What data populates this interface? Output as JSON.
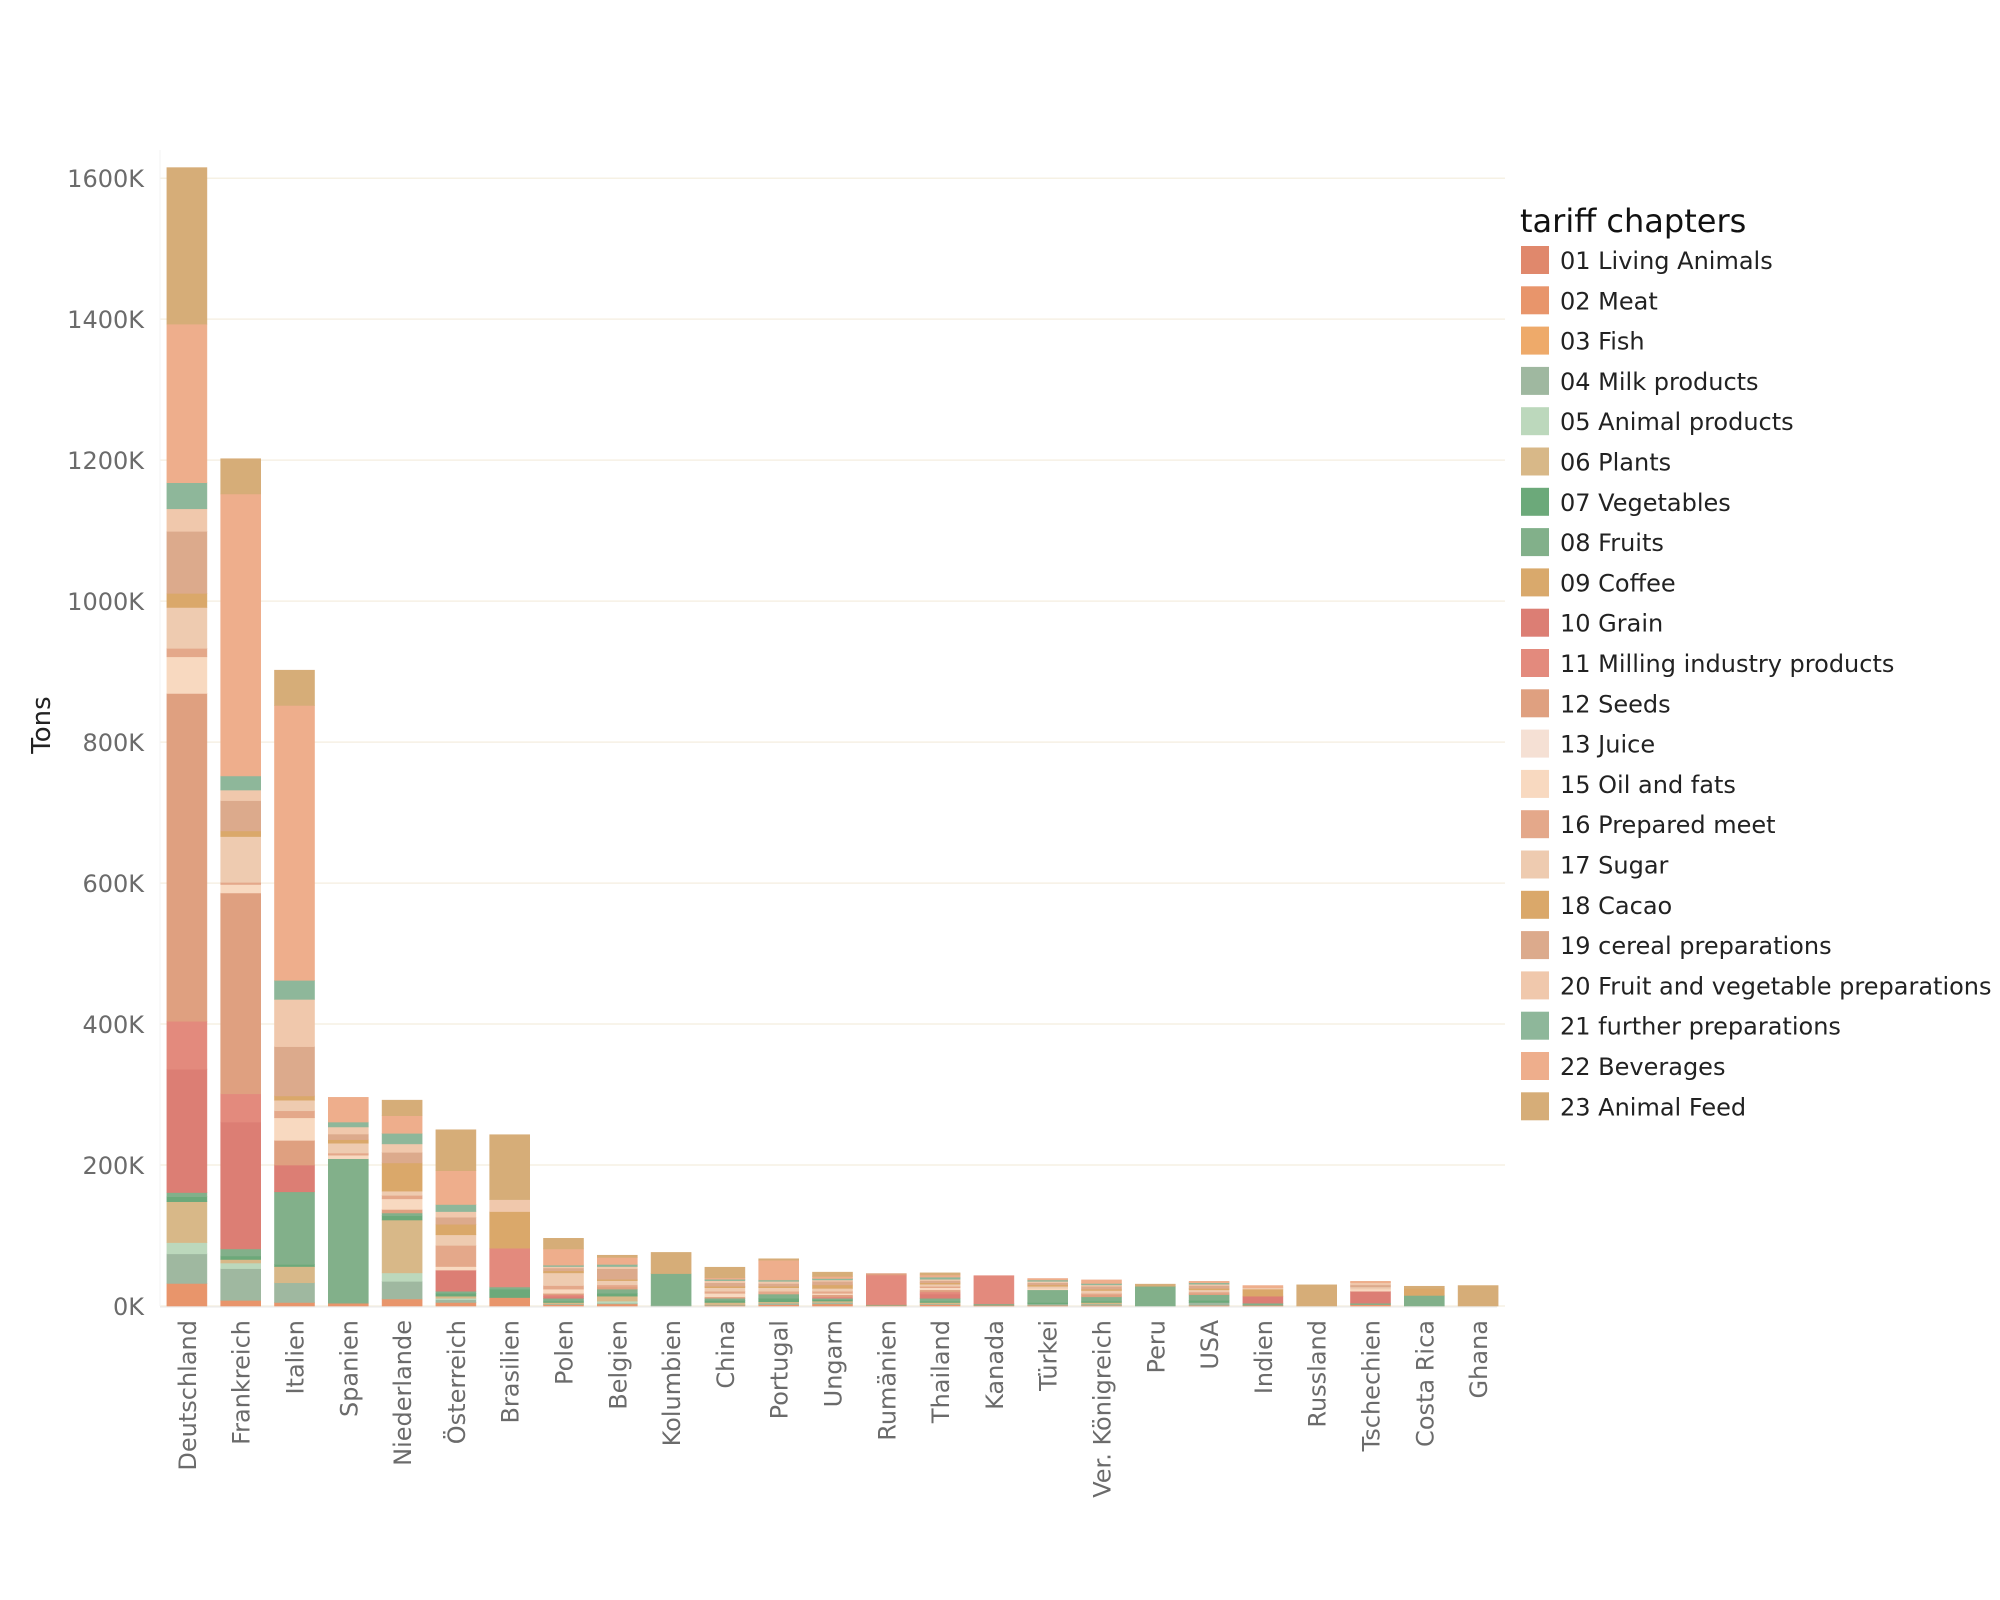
{
  "chart_data": {
    "type": "bar",
    "stacked": true,
    "title": "",
    "xlabel": "",
    "ylabel": "Tons",
    "ylim": [
      0,
      1640
    ],
    "y_unit": "K",
    "y_ticks": [
      {
        "value": 0,
        "label": "0K"
      },
      {
        "value": 200,
        "label": "200K"
      },
      {
        "value": 400,
        "label": "400K"
      },
      {
        "value": 600,
        "label": "600K"
      },
      {
        "value": 800,
        "label": "800K"
      },
      {
        "value": 1000,
        "label": "1000K"
      },
      {
        "value": 1200,
        "label": "1200K"
      },
      {
        "value": 1400,
        "label": "1400K"
      },
      {
        "value": 1600,
        "label": "1600K"
      }
    ],
    "grid": true,
    "x_tick_rotation": "vertical",
    "legend": {
      "title": "tariff chapters",
      "placement": "right"
    },
    "categories": [
      "Deutschland",
      "Frankreich",
      "Italien",
      "Spanien",
      "Niederlande",
      "Österreich",
      "Brasilien",
      "Polen",
      "Belgien",
      "Kolumbien",
      "China",
      "Portugal",
      "Ungarn",
      "Rumänien",
      "Thailand",
      "Kanada",
      "Türkei",
      "Ver. Königreich",
      "Peru",
      "USA",
      "Indien",
      "Russland",
      "Tschechien",
      "Costa Rica",
      "Ghana"
    ],
    "series": [
      {
        "name": "01 Living Animals",
        "color": "#e0886c",
        "values": [
          0,
          0,
          0,
          0,
          0,
          0,
          0,
          0,
          0,
          0,
          0,
          0,
          0,
          0,
          0,
          0,
          0,
          0,
          0,
          0,
          0,
          0,
          0,
          0,
          0
        ]
      },
      {
        "name": "02 Meat",
        "color": "#e8956b",
        "values": [
          32,
          8,
          5,
          4,
          10,
          5,
          12,
          2,
          3,
          0,
          1,
          2,
          3,
          1,
          2,
          1,
          1,
          1,
          0,
          1,
          1,
          0,
          2,
          0,
          0
        ]
      },
      {
        "name": "03 Fish",
        "color": "#eeaa6a",
        "values": [
          0,
          0,
          0,
          0,
          0,
          0,
          0,
          0,
          0,
          0,
          0,
          0,
          0,
          0,
          0,
          0,
          0,
          0,
          0,
          0,
          0,
          0,
          0,
          0,
          0
        ]
      },
      {
        "name": "04 Milk products",
        "color": "#9fb8a0",
        "values": [
          42,
          45,
          28,
          0,
          25,
          4,
          0,
          1,
          1,
          1,
          1,
          2,
          2,
          0,
          1,
          0,
          2,
          2,
          0,
          4,
          0,
          0,
          0,
          0,
          0
        ]
      },
      {
        "name": "05 Animal products",
        "color": "#bcd8bc",
        "values": [
          16,
          8,
          0,
          0,
          12,
          2,
          0,
          0,
          3,
          0,
          0,
          0,
          0,
          0,
          0,
          0,
          0,
          0,
          0,
          0,
          0,
          0,
          0,
          0,
          0
        ]
      },
      {
        "name": "06 Plants",
        "color": "#d8b888",
        "values": [
          58,
          5,
          23,
          0,
          75,
          3,
          0,
          2,
          7,
          0,
          3,
          2,
          2,
          0,
          2,
          0,
          0,
          2,
          0,
          0,
          0,
          0,
          0,
          0,
          0
        ]
      },
      {
        "name": "07 Vegetables",
        "color": "#6ca97a",
        "values": [
          7,
          5,
          3,
          0,
          6,
          4,
          12,
          2,
          4,
          0,
          3,
          5,
          2,
          0,
          2,
          0,
          2,
          2,
          0,
          3,
          0,
          0,
          0,
          0,
          0
        ]
      },
      {
        "name": "08 Fruits",
        "color": "#82b08a",
        "values": [
          6,
          10,
          103,
          205,
          4,
          3,
          3,
          4,
          6,
          45,
          3,
          6,
          2,
          1,
          4,
          2,
          18,
          6,
          28,
          8,
          3,
          0,
          2,
          15,
          0
        ]
      },
      {
        "name": "09 Coffee",
        "color": "#d9a96c",
        "values": [
          0,
          0,
          0,
          0,
          0,
          0,
          0,
          0,
          0,
          0,
          0,
          0,
          0,
          0,
          0,
          0,
          0,
          0,
          0,
          0,
          0,
          0,
          0,
          0,
          0
        ]
      },
      {
        "name": "10 Grain",
        "color": "#dc7e74",
        "values": [
          175,
          180,
          38,
          0,
          0,
          30,
          0,
          3,
          0,
          0,
          0,
          0,
          0,
          0,
          6,
          0,
          0,
          0,
          0,
          0,
          10,
          0,
          17,
          0,
          0
        ]
      },
      {
        "name": "11 Milling industry products",
        "color": "#e38a7d",
        "values": [
          68,
          40,
          0,
          0,
          0,
          0,
          55,
          2,
          0,
          0,
          0,
          0,
          2,
          42,
          3,
          40,
          0,
          0,
          0,
          0,
          0,
          0,
          0,
          0,
          0
        ]
      },
      {
        "name": "12 Seeds",
        "color": "#dfa080",
        "values": [
          465,
          285,
          35,
          0,
          5,
          0,
          0,
          2,
          3,
          0,
          2,
          0,
          3,
          2,
          3,
          0,
          0,
          3,
          0,
          2,
          0,
          0,
          0,
          0,
          0
        ]
      },
      {
        "name": "13 Juice",
        "color": "#f5e0d4",
        "values": [
          0,
          0,
          0,
          0,
          0,
          0,
          0,
          0,
          0,
          0,
          0,
          0,
          0,
          0,
          0,
          0,
          0,
          0,
          0,
          0,
          0,
          0,
          0,
          0,
          0
        ]
      },
      {
        "name": "15 Oil and fats",
        "color": "#f8d9c0",
        "values": [
          52,
          12,
          32,
          5,
          15,
          5,
          0,
          6,
          0,
          0,
          5,
          0,
          2,
          0,
          3,
          0,
          2,
          0,
          0,
          0,
          0,
          0,
          3,
          0,
          0
        ]
      },
      {
        "name": "16 Prepared meet",
        "color": "#e4a88a",
        "values": [
          12,
          3,
          10,
          3,
          5,
          30,
          0,
          5,
          3,
          0,
          3,
          4,
          3,
          0,
          2,
          0,
          0,
          2,
          0,
          2,
          0,
          0,
          0,
          0,
          0
        ]
      },
      {
        "name": "17 Sugar",
        "color": "#eecbb0",
        "values": [
          58,
          65,
          15,
          14,
          6,
          15,
          0,
          18,
          6,
          0,
          5,
          5,
          4,
          0,
          3,
          0,
          3,
          4,
          0,
          3,
          0,
          0,
          3,
          0,
          0
        ]
      },
      {
        "name": "18 Cacao",
        "color": "#daa86a",
        "values": [
          20,
          8,
          6,
          5,
          40,
          15,
          52,
          3,
          2,
          0,
          2,
          2,
          5,
          0,
          2,
          0,
          2,
          2,
          0,
          2,
          10,
          0,
          0,
          10,
          0
        ]
      },
      {
        "name": "19 cereal preparations",
        "color": "#dcaa8c",
        "values": [
          88,
          43,
          70,
          8,
          15,
          10,
          0,
          4,
          15,
          0,
          5,
          4,
          5,
          0,
          3,
          0,
          3,
          4,
          0,
          4,
          0,
          0,
          3,
          0,
          0
        ]
      },
      {
        "name": "20 Fruit and vegetable preparations",
        "color": "#f0c8ac",
        "values": [
          32,
          15,
          67,
          10,
          12,
          8,
          17,
          2,
          3,
          0,
          3,
          3,
          2,
          0,
          2,
          0,
          2,
          2,
          0,
          2,
          2,
          0,
          3,
          0,
          0
        ]
      },
      {
        "name": "21 further preparations",
        "color": "#8eb79a",
        "values": [
          37,
          20,
          27,
          7,
          15,
          10,
          0,
          2,
          3,
          0,
          2,
          2,
          2,
          0,
          3,
          0,
          2,
          2,
          0,
          2,
          0,
          0,
          0,
          0,
          0
        ]
      },
      {
        "name": "22 Beverages",
        "color": "#eeae8c",
        "values": [
          225,
          400,
          390,
          35,
          25,
          48,
          0,
          23,
          10,
          0,
          2,
          28,
          3,
          0,
          3,
          0,
          2,
          5,
          0,
          2,
          3,
          0,
          2,
          0,
          0
        ]
      },
      {
        "name": "23 Animal Feed",
        "color": "#d6ad78",
        "values": [
          222,
          50,
          50,
          0,
          22,
          58,
          92,
          15,
          3,
          30,
          15,
          2,
          6,
          0,
          3,
          0,
          0,
          0,
          3,
          0,
          0,
          30,
          0,
          3,
          29
        ]
      }
    ]
  }
}
